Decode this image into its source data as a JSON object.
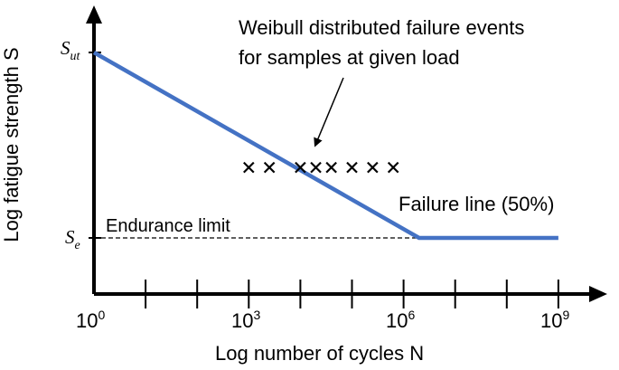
{
  "chart_data": {
    "type": "line",
    "title": "",
    "xlabel": "Log number of cycles N",
    "ylabel": "Log fatigue strength S",
    "x_scale": "log10",
    "x_ticks_labeled": [
      {
        "label": "10",
        "sup": "0",
        "value": 1
      },
      {
        "label": "10",
        "sup": "3",
        "value": 1000
      },
      {
        "label": "10",
        "sup": "6",
        "value": 1000000
      },
      {
        "label": "10",
        "sup": "9",
        "value": 1000000000
      }
    ],
    "x_minor_ticks_log10": [
      1,
      2,
      4,
      5,
      7,
      8
    ],
    "y_ticks_labeled": [
      {
        "main": "S",
        "sub": "ut",
        "key": "Sut"
      },
      {
        "main": "S",
        "sub": "e",
        "key": "Se"
      }
    ],
    "y_levels": {
      "Sut": 1.0,
      "Se": 0.0
    },
    "series": [
      {
        "name": "Failure line (50%)",
        "color": "#4472C4",
        "points": [
          {
            "x": 1,
            "y": "Sut"
          },
          {
            "x": 2000000,
            "y": "Se"
          },
          {
            "x": 1000000000,
            "y": "Se"
          }
        ]
      }
    ],
    "endurance_line": {
      "label": "Endurance limit",
      "y": "Se",
      "style": "dashed"
    },
    "failure_events": {
      "marker": "x",
      "log10_x": [
        3.0,
        3.4,
        4.0,
        4.3,
        4.6,
        5.0,
        5.4,
        5.8
      ],
      "y_fraction_between_Se_and_Sut": 0.38
    },
    "annotation": {
      "lines": [
        "Weibull distributed failure events",
        "for samples  at given load"
      ],
      "arrow_target": "failure_events"
    }
  }
}
